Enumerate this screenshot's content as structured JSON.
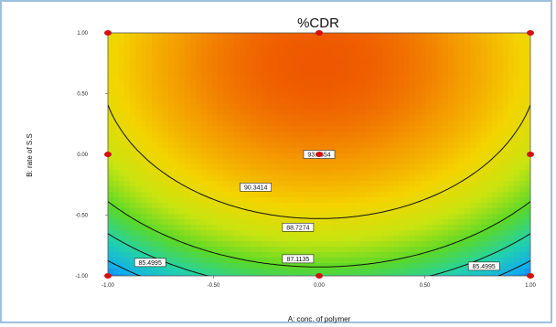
{
  "chart_data": {
    "type": "heatmap",
    "subtype": "contour",
    "title": "%CDR",
    "xlabel": "A: conc. of polymer",
    "ylabel": "B: rate of S.S",
    "xlim": [
      -1.0,
      1.0
    ],
    "ylim": [
      -1.0,
      1.0
    ],
    "x_ticks": [
      "-1.00",
      "-0.50",
      "0.00",
      "0.50",
      "1.00"
    ],
    "y_ticks": [
      "-1.00",
      "-0.50",
      "0.00",
      "0.50",
      "1.00"
    ],
    "colormap": [
      "#0a38d8",
      "#11aaf0",
      "#22d2aa",
      "#5ad828",
      "#c8e410",
      "#f4d400",
      "#f49a00",
      "#ee5000",
      "#e41e00"
    ],
    "contours": [
      {
        "label": "93.1654",
        "level": 93.1654,
        "label_x": 0.0,
        "label_y": 0.0
      },
      {
        "label": "90.3414",
        "level": 90.3414,
        "label_x": -0.3,
        "label_y": -0.27
      },
      {
        "label": "88.7274",
        "level": 88.7274,
        "label_x": -0.1,
        "label_y": -0.6
      },
      {
        "label": "87.1135",
        "level": 87.1135,
        "label_x": -0.1,
        "label_y": -0.86
      },
      {
        "label": "85.4995",
        "level": 85.4995,
        "label_x": 0.78,
        "label_y": -0.92
      },
      {
        "label": "85.4995",
        "level": 85.4995,
        "label_x": -0.8,
        "label_y": -0.89
      }
    ],
    "design_points": [
      {
        "x": -1,
        "y": 1
      },
      {
        "x": 0,
        "y": 1
      },
      {
        "x": 1,
        "y": 1
      },
      {
        "x": -1,
        "y": 0
      },
      {
        "x": 0,
        "y": 0
      },
      {
        "x": 1,
        "y": 0
      },
      {
        "x": -1,
        "y": -1
      },
      {
        "x": 0,
        "y": -1
      },
      {
        "x": 1,
        "y": -1
      }
    ]
  }
}
